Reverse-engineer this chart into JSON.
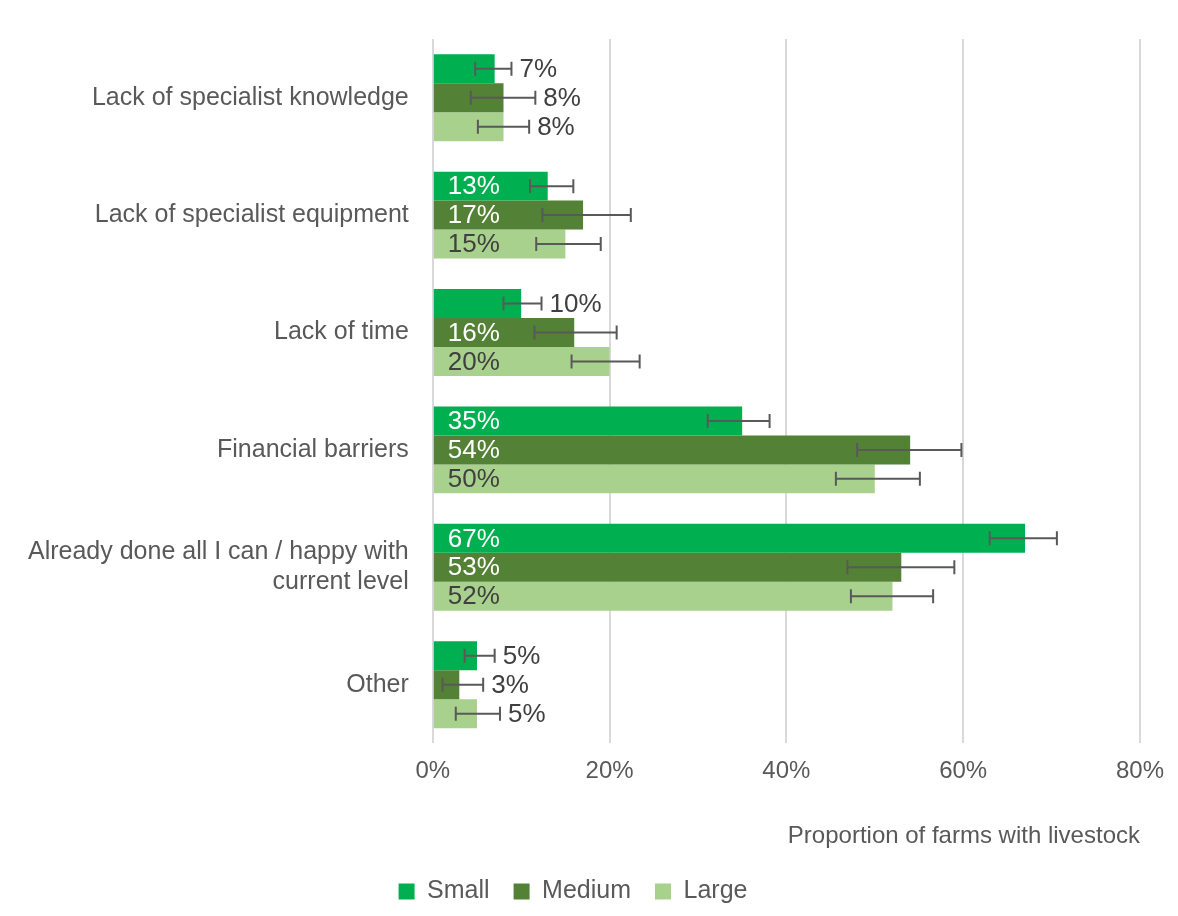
{
  "chart_data": {
    "type": "bar",
    "orientation": "horizontal",
    "xlabel": "Proportion of farms with livestock",
    "categories": [
      "Lack of specialist knowledge",
      "Lack of specialist equipment",
      "Lack of time",
      "Financial barriers",
      "Already done all I can / happy with current level",
      "Other"
    ],
    "series": [
      {
        "name": "Small",
        "color": "#00b050",
        "values": [
          7,
          13,
          10,
          35,
          67,
          5
        ],
        "value_labels": [
          "7%",
          "13%",
          "10%",
          "35%",
          "67%",
          "5%"
        ],
        "errors": [
          [
            4.8,
            8.9
          ],
          [
            11.0,
            15.9
          ],
          [
            8.0,
            12.3
          ],
          [
            31.1,
            38.1
          ],
          [
            63.0,
            70.6
          ],
          [
            3.6,
            7.0
          ]
        ]
      },
      {
        "name": "Medium",
        "color": "#538135",
        "values": [
          8,
          17,
          16,
          54,
          53,
          3
        ],
        "value_labels": [
          "8%",
          "17%",
          "16%",
          "54%",
          "53%",
          "3%"
        ],
        "errors": [
          [
            4.3,
            11.6
          ],
          [
            12.4,
            22.4
          ],
          [
            11.5,
            20.8
          ],
          [
            48.0,
            59.8
          ],
          [
            46.9,
            59.0
          ],
          [
            1.1,
            5.7
          ]
        ]
      },
      {
        "name": "Large",
        "color": "#a9d18e",
        "values": [
          8,
          15,
          20,
          50,
          52,
          5
        ],
        "value_labels": [
          "8%",
          "15%",
          "20%",
          "50%",
          "52%",
          "5%"
        ],
        "errors": [
          [
            5.1,
            10.9
          ],
          [
            11.7,
            19.0
          ],
          [
            15.7,
            23.4
          ],
          [
            45.6,
            55.1
          ],
          [
            47.3,
            56.6
          ],
          [
            2.6,
            7.6
          ]
        ]
      }
    ],
    "xlim": [
      0,
      80
    ],
    "xticks": [
      {
        "value": 0,
        "label": "0%"
      },
      {
        "value": 20,
        "label": "20%"
      },
      {
        "value": 40,
        "label": "40%"
      },
      {
        "value": 60,
        "label": "60%"
      },
      {
        "value": 80,
        "label": "80%"
      }
    ],
    "grid": "x",
    "legend": "bottom"
  }
}
